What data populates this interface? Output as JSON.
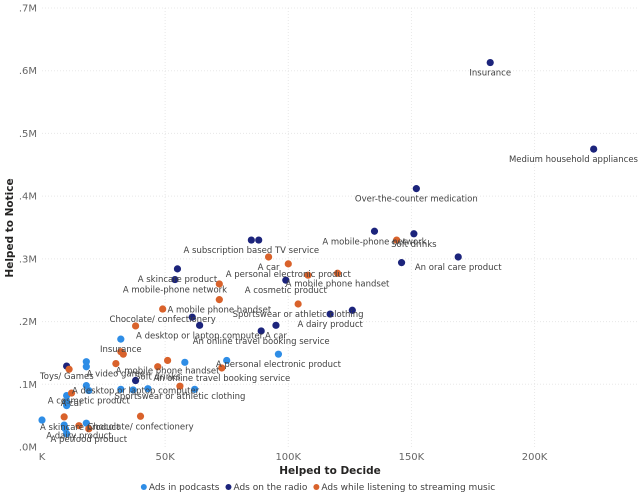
{
  "chart_data": {
    "type": "scatter",
    "xlabel": "Helped to Decide",
    "ylabel": "Helped to Notice",
    "xlim": [
      0,
      242000
    ],
    "ylim": [
      0,
      700000
    ],
    "x_ticks": [
      {
        "value": 0,
        "label": "K"
      },
      {
        "value": 50000,
        "label": "50K"
      },
      {
        "value": 100000,
        "label": "100K"
      },
      {
        "value": 150000,
        "label": "150K"
      },
      {
        "value": 200000,
        "label": "200K"
      }
    ],
    "y_ticks": [
      {
        "value": 0,
        "label": ".0M"
      },
      {
        "value": 100000,
        "label": ".1M"
      },
      {
        "value": 200000,
        "label": ".2M"
      },
      {
        "value": 300000,
        "label": ".3M"
      },
      {
        "value": 400000,
        "label": ".4M"
      },
      {
        "value": 500000,
        "label": ".5M"
      },
      {
        "value": 600000,
        "label": ".6M"
      },
      {
        "value": 700000,
        "label": ".7M"
      }
    ],
    "legend_position": "bottom",
    "series": [
      {
        "name": "Ads in podcasts",
        "color": "#2e8de6",
        "points": [
          {
            "x": 0,
            "y": 43000
          },
          {
            "x": 9000,
            "y": 35000
          },
          {
            "x": 9500,
            "y": 29000
          },
          {
            "x": 10000,
            "y": 21000
          },
          {
            "x": 10000,
            "y": 66000
          },
          {
            "x": 10000,
            "y": 72000
          },
          {
            "x": 10000,
            "y": 82000
          },
          {
            "x": 18000,
            "y": 38000
          },
          {
            "x": 18000,
            "y": 98000
          },
          {
            "x": 19000,
            "y": 90000,
            "label": "A cosmetic product"
          },
          {
            "x": 18000,
            "y": 128000
          },
          {
            "x": 18000,
            "y": 136000
          },
          {
            "x": 32000,
            "y": 92000
          },
          {
            "x": 37000,
            "y": 91000
          },
          {
            "x": 32000,
            "y": 172000,
            "label": "Insurance"
          },
          {
            "x": 43000,
            "y": 93000
          },
          {
            "x": 58000,
            "y": 135000
          },
          {
            "x": 62000,
            "y": 92000
          },
          {
            "x": 75000,
            "y": 138000
          },
          {
            "x": 96000,
            "y": 148000,
            "label": "A personal electronic product"
          }
        ]
      },
      {
        "name": "Ads on the radio",
        "color": "#1c247c",
        "points": [
          {
            "x": 182000,
            "y": 613000,
            "label": "Insurance"
          },
          {
            "x": 224000,
            "y": 475000,
            "label": "Medium household appliances"
          },
          {
            "x": 152000,
            "y": 412000,
            "label": "Over-the-counter medication"
          },
          {
            "x": 151000,
            "y": 340000,
            "label": "Soft drinks"
          },
          {
            "x": 135000,
            "y": 344000,
            "label": "A mobile-phone network"
          },
          {
            "x": 169000,
            "y": 303000,
            "label": "An oral care product"
          },
          {
            "x": 146000,
            "y": 294000
          },
          {
            "x": 85000,
            "y": 330000,
            "label": "A subscription based TV service"
          },
          {
            "x": 88000,
            "y": 330000
          },
          {
            "x": 55000,
            "y": 284000,
            "label": "A skincare product"
          },
          {
            "x": 54000,
            "y": 267000,
            "label": "A mobile-phone network"
          },
          {
            "x": 99000,
            "y": 266000,
            "label": "A cosmetic product"
          },
          {
            "x": 126000,
            "y": 218000
          },
          {
            "x": 117000,
            "y": 212000,
            "label": "A dairy product"
          },
          {
            "x": 61000,
            "y": 207000
          },
          {
            "x": 64000,
            "y": 194000,
            "label": "A desktop or laptop computer"
          },
          {
            "x": 95000,
            "y": 194000,
            "label": "A car"
          },
          {
            "x": 89000,
            "y": 185000,
            "label": "An online travel booking service"
          },
          {
            "x": 38000,
            "y": 106000,
            "label": "A desktop or laptop computer"
          },
          {
            "x": 10000,
            "y": 129000,
            "label": "Toys/ Games"
          }
        ]
      },
      {
        "name": "Ads while listening to streaming music",
        "color": "#d9622b",
        "points": [
          {
            "x": 92000,
            "y": 303000,
            "label": "A car"
          },
          {
            "x": 144000,
            "y": 330000
          },
          {
            "x": 100000,
            "y": 292000,
            "label": "A personal electronic product"
          },
          {
            "x": 108000,
            "y": 274000
          },
          {
            "x": 120000,
            "y": 277000,
            "label": "A mobile phone handset"
          },
          {
            "x": 72000,
            "y": 260000
          },
          {
            "x": 72000,
            "y": 235000,
            "label": "A mobile phone handset"
          },
          {
            "x": 104000,
            "y": 228000,
            "label": "Sportswear or athletic clothing"
          },
          {
            "x": 49000,
            "y": 220000,
            "label": "Chocolate/ confectionery"
          },
          {
            "x": 38000,
            "y": 193000
          },
          {
            "x": 32000,
            "y": 152000
          },
          {
            "x": 33000,
            "y": 148000
          },
          {
            "x": 51000,
            "y": 138000,
            "label": "A mobile phone handset"
          },
          {
            "x": 47000,
            "y": 128000,
            "label": "Soft drinks"
          },
          {
            "x": 30000,
            "y": 133000,
            "label": "A video game"
          },
          {
            "x": 11000,
            "y": 124000
          },
          {
            "x": 12000,
            "y": 86000,
            "label": "A car"
          },
          {
            "x": 40000,
            "y": 49000,
            "label": "Chocolate/ confectionery"
          },
          {
            "x": 19000,
            "y": 29000,
            "label": "A petfood product"
          },
          {
            "x": 73000,
            "y": 126000,
            "label": "An online travel booking service"
          },
          {
            "x": 56000,
            "y": 97000,
            "label": "Sportswear or athletic clothing"
          },
          {
            "x": 9000,
            "y": 48000,
            "label": "A skincare product"
          },
          {
            "x": 15000,
            "y": 34000,
            "label": "A dairy product"
          }
        ]
      }
    ]
  }
}
